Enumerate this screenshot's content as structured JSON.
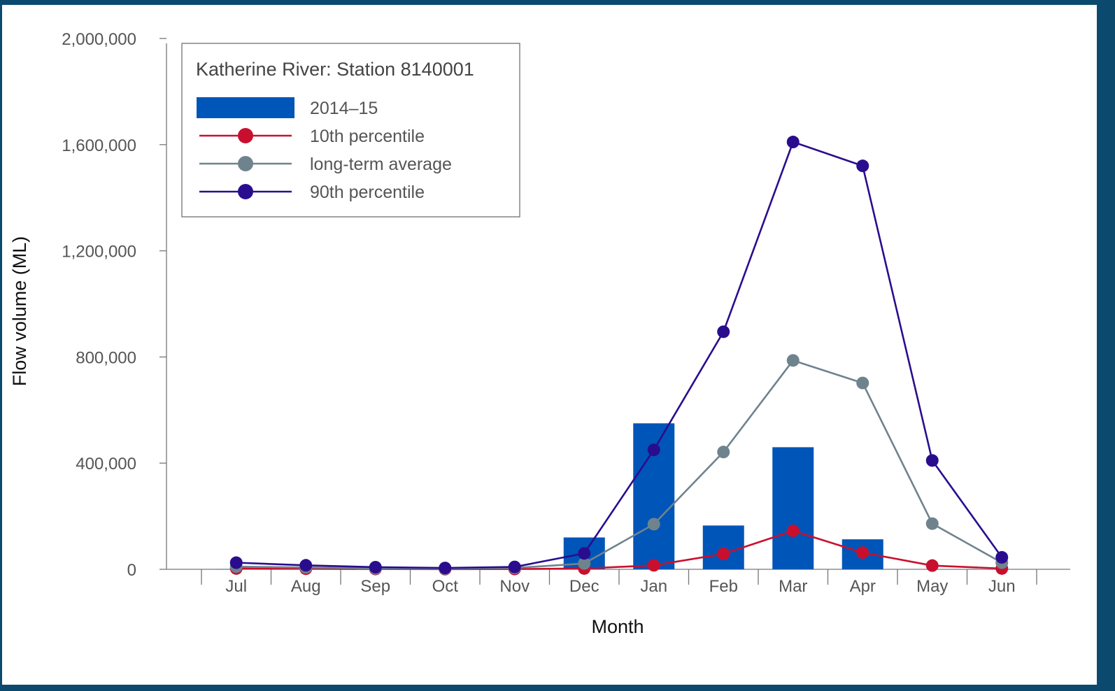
{
  "chart_data": {
    "type": "bar",
    "title": "Katherine River: Station 8140001",
    "xlabel": "Month",
    "ylabel": "Flow volume (ML)",
    "ylim": [
      0,
      2000000
    ],
    "yticks": [
      0,
      400000,
      800000,
      1200000,
      1600000,
      2000000
    ],
    "ytick_labels": [
      "0",
      "400,000",
      "800,000",
      "1,200,000",
      "1,600,000",
      "2,000,000"
    ],
    "categories": [
      "Jul",
      "Aug",
      "Sep",
      "Oct",
      "Nov",
      "Dec",
      "Jan",
      "Feb",
      "Mar",
      "Apr",
      "May",
      "Jun"
    ],
    "legend_position": "top-left",
    "grid": false,
    "series": [
      {
        "name": "2014–15",
        "type": "bar",
        "color": "#0055b8",
        "values": [
          500,
          200,
          100,
          100,
          300,
          120000,
          550000,
          165000,
          460000,
          113000,
          0,
          0
        ]
      },
      {
        "name": "10th percentile",
        "type": "line",
        "color": "#c8102e",
        "values": [
          3000,
          2000,
          1000,
          500,
          1000,
          3000,
          15000,
          58000,
          145000,
          63000,
          14000,
          3000
        ]
      },
      {
        "name": "long-term average",
        "type": "line",
        "color": "#6f838d",
        "values": [
          10000,
          7000,
          3000,
          2000,
          5000,
          22000,
          170000,
          442000,
          787000,
          702000,
          172000,
          25000
        ]
      },
      {
        "name": "90th percentile",
        "type": "line",
        "color": "#2a0d8e",
        "values": [
          25000,
          15000,
          8000,
          5000,
          9000,
          60000,
          450000,
          895000,
          1610000,
          1520000,
          410000,
          45000
        ]
      }
    ]
  }
}
